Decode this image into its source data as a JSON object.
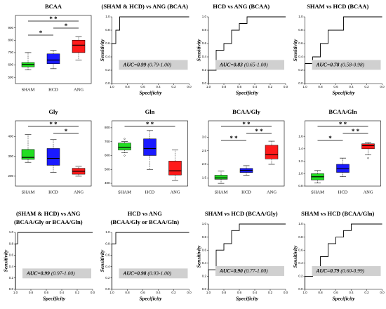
{
  "chart_data": [
    {
      "type": "box",
      "title": "BCAA",
      "categories": [
        "SHAM",
        "HCD",
        "ANG"
      ],
      "colors": [
        "#22dd22",
        "#1a1aff",
        "#ff1a1a"
      ],
      "boxes": [
        [
          560,
          585,
          605,
          620,
          700
        ],
        [
          570,
          610,
          640,
          690,
          720
        ],
        [
          640,
          700,
          760,
          800,
          830
        ]
      ],
      "ylim": [
        450,
        1000
      ],
      "yticks": [
        500,
        600,
        700,
        800,
        900
      ],
      "significance": [
        {
          "between": [
            "SHAM",
            "ANG"
          ],
          "label": "* *"
        },
        {
          "between": [
            "HCD",
            "ANG"
          ],
          "label": "*"
        },
        {
          "between": [
            "SHAM",
            "HCD"
          ],
          "label": "*"
        }
      ]
    },
    {
      "type": "line",
      "title": "(SHAM & HCD) vs ANG (BCAA)",
      "xlabel": "Specificity",
      "ylabel": "Sensitivity",
      "color": "#000000",
      "x": [
        1,
        1,
        0.95,
        0.95,
        0.9,
        0.9,
        0
      ],
      "values": [
        0,
        0.6,
        0.6,
        0.8,
        0.8,
        1,
        1
      ],
      "xlim": [
        1,
        0
      ],
      "ylim": [
        0,
        1
      ],
      "xticks": [
        {
          "value": 1,
          "label": "1.0"
        },
        0.8,
        0.6,
        0.4,
        0.2,
        {
          "value": 0,
          "label": "0.0"
        }
      ],
      "yticks": [
        {
          "value": 0,
          "label": "0.0"
        },
        0.2,
        0.4,
        0.6,
        0.8,
        {
          "value": 1,
          "label": "1.0"
        }
      ],
      "annotation": "AUC=0.99",
      "annotation_ci": "(0.79-1.00)"
    },
    {
      "type": "line",
      "title": "HCD vs ANG (BCAA)",
      "xlabel": "Specificity",
      "ylabel": "Sensitivity",
      "color": "#000000",
      "x": [
        1,
        1,
        0.9,
        0.9,
        0.8,
        0.8,
        0.7,
        0.7,
        0.6,
        0.6,
        0.5,
        0.5,
        0
      ],
      "values": [
        0,
        0.2,
        0.2,
        0.5,
        0.5,
        0.6,
        0.6,
        0.8,
        0.8,
        0.9,
        0.9,
        1,
        1
      ],
      "xlim": [
        1,
        0
      ],
      "ylim": [
        0,
        1
      ],
      "xticks": [
        {
          "value": 1,
          "label": "1.0"
        },
        0.8,
        0.6,
        0.4,
        0.2,
        {
          "value": 0,
          "label": "0.0"
        }
      ],
      "yticks": [
        {
          "value": 0,
          "label": "0.0"
        },
        0.2,
        0.4,
        0.6,
        0.8,
        {
          "value": 1,
          "label": "1.0"
        }
      ],
      "annotation": "AUC=0.83",
      "annotation_ci": "(0.65-1.00)"
    },
    {
      "type": "line",
      "title": "SHAM vs HCD (BCAA)",
      "xlabel": "Specificity",
      "ylabel": "Sensitivity",
      "color": "#000000",
      "x": [
        1,
        1,
        0.9,
        0.9,
        0.8,
        0.8,
        0.7,
        0.7,
        0.5,
        0.5,
        0
      ],
      "values": [
        0,
        0.3,
        0.3,
        0.4,
        0.4,
        0.6,
        0.6,
        0.8,
        0.8,
        1,
        1
      ],
      "xlim": [
        1,
        0
      ],
      "ylim": [
        0,
        1
      ],
      "xticks": [
        {
          "value": 1,
          "label": "1.0"
        },
        0.8,
        0.6,
        0.4,
        0.2,
        {
          "value": 0,
          "label": "0.0"
        }
      ],
      "yticks": [
        {
          "value": 0,
          "label": "0.0"
        },
        0.2,
        0.4,
        0.6,
        0.8,
        {
          "value": 1,
          "label": "1.0"
        }
      ],
      "annotation": "AUC=0.78",
      "annotation_ci": "(0.58-0.98)"
    },
    {
      "type": "box",
      "title": "Gly",
      "categories": [
        "SHAM",
        "HCD",
        "ANG"
      ],
      "colors": [
        "#22dd22",
        "#1a1aff",
        "#ff1a1a"
      ],
      "boxes": [
        [
          270,
          285,
          295,
          335,
          410
        ],
        [
          220,
          255,
          290,
          340,
          385
        ],
        [
          200,
          210,
          225,
          240,
          250
        ]
      ],
      "ylim": [
        150,
        480
      ],
      "yticks": [
        200,
        300,
        400
      ],
      "significance": [
        {
          "between": [
            "SHAM",
            "ANG"
          ],
          "label": "* *"
        },
        {
          "between": [
            "HCD",
            "ANG"
          ],
          "label": "*"
        }
      ]
    },
    {
      "type": "box",
      "title": "Gln",
      "categories": [
        "SHAM",
        "HCD",
        "ANG"
      ],
      "colors": [
        "#22dd22",
        "#1a1aff",
        "#ff1a1a"
      ],
      "boxes": [
        [
          620,
          640,
          660,
          690,
          700
        ],
        [
          500,
          600,
          650,
          720,
          780
        ],
        [
          420,
          460,
          490,
          560,
          640
        ]
      ],
      "outliers": [
        [
          720,
          600
        ],
        [],
        []
      ],
      "ylim": [
        380,
        850
      ],
      "yticks": [
        400,
        500,
        600,
        700,
        800
      ],
      "significance": [
        {
          "between": [
            "SHAM",
            "ANG"
          ],
          "label": "* *"
        }
      ]
    },
    {
      "type": "box",
      "title": "BCAA/Gly",
      "categories": [
        "SHAM",
        "HCD",
        "ANG"
      ],
      "colors": [
        "#22dd22",
        "#1a1aff",
        "#ff1a1a"
      ],
      "boxes": [
        [
          1.3,
          1.45,
          1.5,
          1.6,
          1.75
        ],
        [
          1.6,
          1.7,
          1.78,
          1.85,
          1.95
        ],
        [
          2.0,
          2.2,
          2.35,
          2.7,
          2.85
        ]
      ],
      "ylim": [
        1.2,
        3.6
      ],
      "yticks": [
        1.5,
        {
          "value": 2,
          "label": "2.0"
        },
        2.5,
        {
          "value": 3,
          "label": "3.0"
        }
      ],
      "significance": [
        {
          "between": [
            "SHAM",
            "ANG"
          ],
          "label": "* *"
        },
        {
          "between": [
            "HCD",
            "ANG"
          ],
          "label": "* *"
        },
        {
          "between": [
            "SHAM",
            "HCD"
          ],
          "label": "* *"
        }
      ]
    },
    {
      "type": "box",
      "title": "BCAA/Gln",
      "categories": [
        "SHAM",
        "HCD",
        "ANG"
      ],
      "colors": [
        "#22dd22",
        "#1a1aff",
        "#ff1a1a"
      ],
      "boxes": [
        [
          0.85,
          0.9,
          0.95,
          1.0,
          1.05
        ],
        [
          0.95,
          1.02,
          1.08,
          1.15,
          1.25
        ],
        [
          1.3,
          1.4,
          1.45,
          1.48,
          1.5
        ]
      ],
      "outliers": [
        [],
        [],
        [
          1.25
        ]
      ],
      "ylim": [
        0.8,
        1.85
      ],
      "yticks": [
        0.8,
        {
          "value": 1,
          "label": "1.0"
        },
        1.2,
        1.4,
        1.6
      ],
      "significance": [
        {
          "between": [
            "SHAM",
            "ANG"
          ],
          "label": "* *"
        },
        {
          "between": [
            "HCD",
            "ANG"
          ],
          "label": "* *"
        },
        {
          "between": [
            "SHAM",
            "HCD"
          ],
          "label": "*"
        }
      ]
    },
    {
      "type": "line",
      "title": "(SHAM & HCD) vs ANG",
      "subtitle": "(BCAA/Gly or BCAA/Gln)",
      "xlabel": "Specificity",
      "ylabel": "Sensitivity",
      "color": "#000000",
      "x": [
        1,
        1,
        0.97,
        0.97,
        0
      ],
      "values": [
        0,
        0.8,
        0.8,
        1,
        1
      ],
      "xlim": [
        1,
        0
      ],
      "ylim": [
        0,
        1
      ],
      "xticks": [
        {
          "value": 1,
          "label": "1.0"
        },
        0.8,
        0.6,
        0.4,
        0.2,
        {
          "value": 0,
          "label": "0.0"
        }
      ],
      "yticks": [
        {
          "value": 0,
          "label": "0.0"
        },
        0.2,
        0.4,
        0.6,
        0.8,
        {
          "value": 1,
          "label": "1.0"
        }
      ],
      "annotation": "AUC=0.99",
      "annotation_ci": "(0.97-1.00)"
    },
    {
      "type": "line",
      "title": "HCD vs ANG",
      "subtitle": "(BCAA/Gly or BCAA/Gln)",
      "xlabel": "Specificity",
      "ylabel": "Sensitivity",
      "color": "#000000",
      "x": [
        1,
        1,
        0.95,
        0.95,
        0
      ],
      "values": [
        0,
        0.8,
        0.8,
        1,
        1
      ],
      "xlim": [
        1,
        0
      ],
      "ylim": [
        0,
        1
      ],
      "xticks": [
        {
          "value": 1,
          "label": "1.0"
        },
        0.8,
        0.6,
        0.4,
        0.2,
        {
          "value": 0,
          "label": "0.0"
        }
      ],
      "yticks": [
        {
          "value": 0,
          "label": "0.0"
        },
        0.2,
        0.4,
        0.6,
        0.8,
        {
          "value": 1,
          "label": "1.0"
        }
      ],
      "annotation": "AUC=0.98",
      "annotation_ci": "(0.93-1.00)"
    },
    {
      "type": "line",
      "title": "SHAM vs HCD (BCAA/Gly)",
      "xlabel": "Specificity",
      "ylabel": "Sensitivity",
      "color": "#000000",
      "x": [
        1,
        1,
        0.9,
        0.9,
        0.8,
        0.8,
        0.7,
        0.7,
        0.6,
        0.6,
        0
      ],
      "values": [
        0,
        0.3,
        0.3,
        0.6,
        0.6,
        0.7,
        0.7,
        0.9,
        0.9,
        1,
        1
      ],
      "xlim": [
        1,
        0
      ],
      "ylim": [
        0,
        1
      ],
      "xticks": [
        {
          "value": 1,
          "label": "1.0"
        },
        0.8,
        0.6,
        0.4,
        0.2,
        {
          "value": 0,
          "label": "0.0"
        }
      ],
      "yticks": [
        {
          "value": 0,
          "label": "0.0"
        },
        0.2,
        0.4,
        0.6,
        0.8,
        {
          "value": 1,
          "label": "1.0"
        }
      ],
      "annotation": "AUC=0.90",
      "annotation_ci": "(0.77-1.00)"
    },
    {
      "type": "line",
      "title": "SHAM vs HCD (BCAA/Gln)",
      "xlabel": "Specificity",
      "ylabel": "Sensitivity",
      "color": "#000000",
      "x": [
        1,
        1,
        0.9,
        0.9,
        0.8,
        0.8,
        0.7,
        0.7,
        0.6,
        0.6,
        0.5,
        0.5,
        0.4,
        0.4,
        0
      ],
      "values": [
        0,
        0.2,
        0.2,
        0.3,
        0.3,
        0.5,
        0.5,
        0.7,
        0.7,
        0.8,
        0.8,
        0.9,
        0.9,
        1,
        1
      ],
      "xlim": [
        1,
        0
      ],
      "ylim": [
        0,
        1
      ],
      "xticks": [
        {
          "value": 1,
          "label": "1.0"
        },
        0.8,
        0.6,
        0.4,
        0.2,
        {
          "value": 0,
          "label": "0.0"
        }
      ],
      "yticks": [
        {
          "value": 0,
          "label": "0.0"
        },
        0.2,
        0.4,
        0.6,
        0.8,
        {
          "value": 1,
          "label": "1.0"
        }
      ],
      "annotation": "AUC=0.79",
      "annotation_ci": "(0.60-0.99)"
    }
  ]
}
